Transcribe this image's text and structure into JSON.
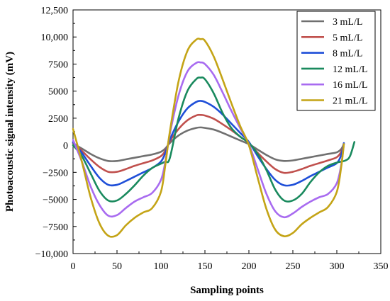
{
  "chart_data": {
    "type": "line",
    "xlabel": "Sampling points",
    "ylabel": "Photoacoustic signal intensity (mV)",
    "xlim": [
      0,
      350
    ],
    "ylim": [
      -10000,
      12500
    ],
    "x_ticks": [
      0,
      50,
      100,
      150,
      200,
      250,
      300,
      350
    ],
    "y_ticks": [
      -10000,
      -7500,
      -5000,
      -2500,
      0,
      2500,
      5000,
      7500,
      10000,
      12500
    ],
    "x_tick_labels": [
      "0",
      "50",
      "100",
      "150",
      "200",
      "250",
      "300",
      "350"
    ],
    "y_tick_labels": [
      "−10,000",
      "−7500",
      "−5000",
      "−2500",
      "0",
      "2500",
      "5000",
      "7500",
      "10,000",
      "12,500"
    ],
    "grid": false,
    "legend_position": "top-right",
    "series": [
      {
        "name": "3 mL/L",
        "color": "#707070",
        "x": [
          0,
          10,
          20,
          30,
          40,
          50,
          60,
          70,
          80,
          90,
          100,
          105,
          110,
          120,
          130,
          140,
          145,
          150,
          160,
          170,
          180,
          190,
          200,
          210,
          220,
          230,
          240,
          250,
          260,
          270,
          280,
          290,
          300,
          305,
          308
        ],
        "y": [
          150,
          -300,
          -800,
          -1200,
          -1450,
          -1450,
          -1300,
          -1150,
          -1000,
          -850,
          -600,
          -300,
          200,
          900,
          1350,
          1600,
          1650,
          1600,
          1450,
          1150,
          800,
          450,
          100,
          -400,
          -900,
          -1300,
          -1450,
          -1400,
          -1250,
          -1100,
          -950,
          -800,
          -650,
          -350,
          100
        ]
      },
      {
        "name": "5 mL/L",
        "color": "#c0504d",
        "x": [
          0,
          10,
          20,
          30,
          40,
          50,
          60,
          70,
          80,
          90,
          100,
          105,
          110,
          120,
          130,
          140,
          145,
          150,
          160,
          170,
          180,
          190,
          200,
          210,
          220,
          230,
          240,
          250,
          260,
          270,
          280,
          290,
          300,
          305,
          308
        ],
        "y": [
          250,
          -500,
          -1300,
          -2000,
          -2450,
          -2450,
          -2200,
          -1900,
          -1650,
          -1400,
          -1000,
          -500,
          350,
          1500,
          2300,
          2750,
          2800,
          2750,
          2450,
          1950,
          1400,
          800,
          200,
          -700,
          -1500,
          -2200,
          -2550,
          -2450,
          -2200,
          -1900,
          -1650,
          -1400,
          -1100,
          -600,
          150
        ]
      },
      {
        "name": "8 mL/L",
        "color": "#1f4fd8",
        "x": [
          0,
          10,
          20,
          30,
          40,
          50,
          60,
          70,
          80,
          90,
          100,
          105,
          110,
          120,
          130,
          140,
          145,
          150,
          160,
          170,
          180,
          190,
          200,
          210,
          220,
          230,
          240,
          250,
          260,
          270,
          280,
          290,
          300,
          305,
          308
        ],
        "y": [
          300,
          -700,
          -1900,
          -3000,
          -3650,
          -3650,
          -3300,
          -2900,
          -2500,
          -2100,
          -1500,
          -700,
          500,
          2200,
          3400,
          4000,
          4100,
          4000,
          3550,
          2850,
          2000,
          1150,
          300,
          -1000,
          -2200,
          -3200,
          -3700,
          -3650,
          -3300,
          -2850,
          -2450,
          -2050,
          -1650,
          -900,
          200
        ]
      },
      {
        "name": "12 mL/L",
        "color": "#1a8a5e",
        "x": [
          0,
          10,
          20,
          30,
          40,
          50,
          60,
          70,
          80,
          90,
          100,
          105,
          110,
          120,
          130,
          140,
          145,
          150,
          160,
          170,
          180,
          190,
          200,
          210,
          220,
          230,
          240,
          250,
          260,
          270,
          280,
          290,
          300,
          310,
          315,
          320
        ],
        "y": [
          0,
          -1000,
          -2600,
          -4200,
          -5100,
          -5100,
          -4500,
          -3700,
          -2800,
          -2100,
          -1700,
          -1500,
          -1200,
          2500,
          5000,
          6100,
          6250,
          6100,
          4800,
          3000,
          1600,
          800,
          200,
          -800,
          -2300,
          -4100,
          -5100,
          -5100,
          -4500,
          -3400,
          -2500,
          -1900,
          -1600,
          -1400,
          -1000,
          300
        ]
      },
      {
        "name": "16 mL/L",
        "color": "#a86bf0",
        "x": [
          0,
          10,
          20,
          30,
          40,
          50,
          60,
          70,
          80,
          90,
          100,
          105,
          110,
          120,
          130,
          140,
          145,
          150,
          160,
          170,
          180,
          190,
          200,
          210,
          220,
          230,
          240,
          250,
          260,
          270,
          280,
          290,
          300,
          305,
          308
        ],
        "y": [
          500,
          -1500,
          -3800,
          -5500,
          -6500,
          -6450,
          -5800,
          -5200,
          -4800,
          -4400,
          -3200,
          -1500,
          1000,
          4600,
          6800,
          7600,
          7650,
          7500,
          6500,
          4900,
          3200,
          1600,
          100,
          -2200,
          -4500,
          -6100,
          -6650,
          -6300,
          -5700,
          -5200,
          -4800,
          -4500,
          -3500,
          -1800,
          100
        ]
      },
      {
        "name": "21 mL/L",
        "color": "#c4a416",
        "x": [
          0,
          10,
          20,
          30,
          40,
          50,
          60,
          70,
          80,
          90,
          100,
          105,
          110,
          120,
          130,
          140,
          145,
          150,
          160,
          170,
          180,
          190,
          200,
          210,
          220,
          230,
          240,
          250,
          260,
          270,
          280,
          290,
          300,
          305,
          308
        ],
        "y": [
          1500,
          -1500,
          -4800,
          -7200,
          -8350,
          -8300,
          -7400,
          -6700,
          -6200,
          -5800,
          -4300,
          -1800,
          1200,
          5900,
          8700,
          9750,
          9800,
          9650,
          8200,
          6100,
          3900,
          1800,
          0,
          -3000,
          -5900,
          -7800,
          -8400,
          -8100,
          -7300,
          -6700,
          -6200,
          -5700,
          -4300,
          -2000,
          100
        ]
      }
    ]
  }
}
